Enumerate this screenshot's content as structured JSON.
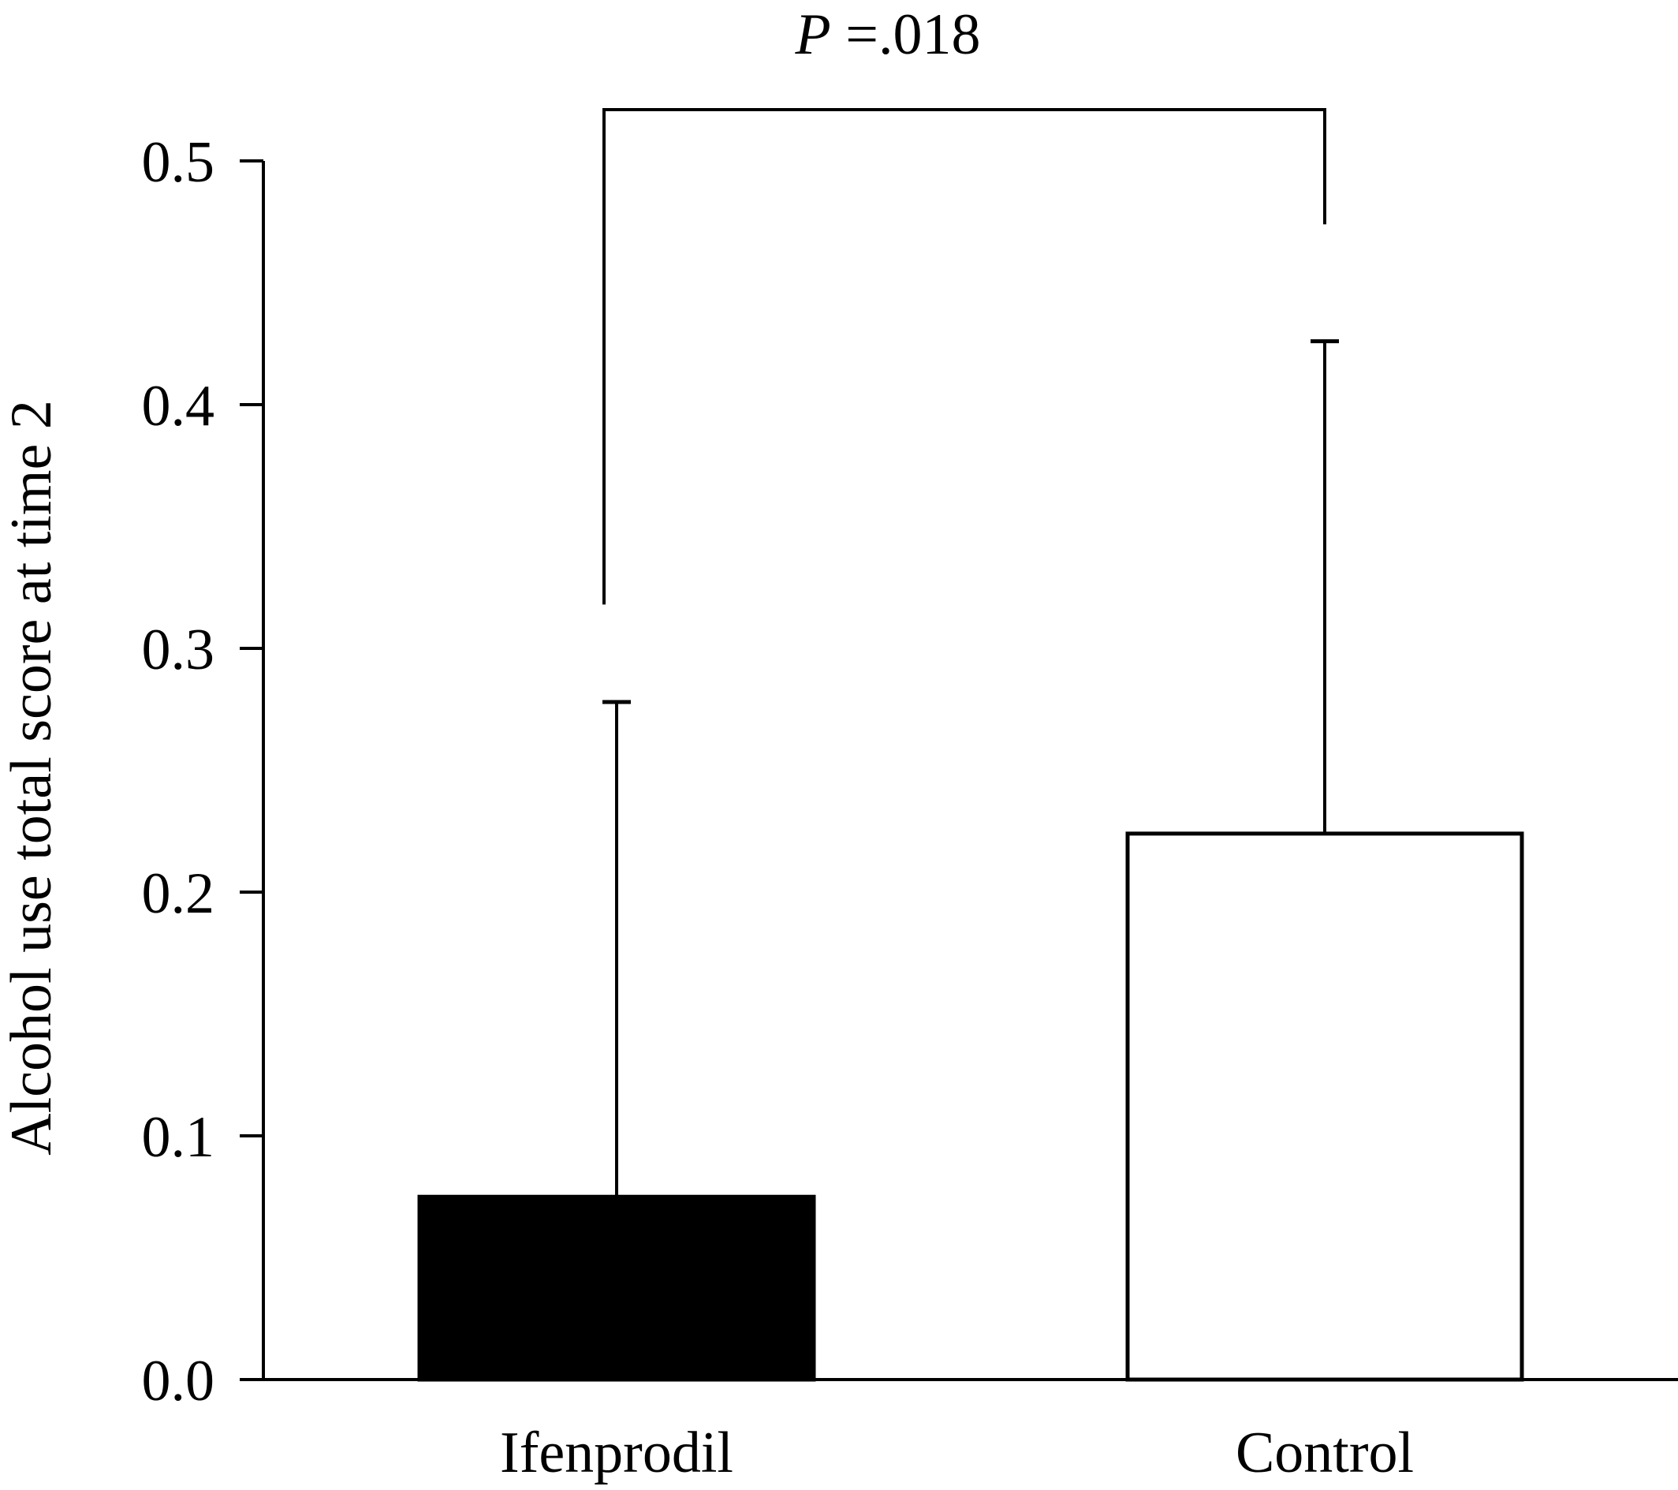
{
  "chart_data": {
    "type": "bar",
    "categories": [
      "Ifenprodil",
      "Control"
    ],
    "values": [
      0.075,
      0.224
    ],
    "error_upper": [
      0.278,
      0.426
    ],
    "ylabel": "Alcohol use total score at time 2",
    "xlabel": "",
    "ylim": [
      0,
      0.5
    ],
    "yticks": [
      "0.0",
      "0.1",
      "0.2",
      "0.3",
      "0.4",
      "0.5"
    ],
    "bar_fills": [
      "#000000",
      "#ffffff"
    ],
    "grid": false,
    "annotation": {
      "p_symbol": "P",
      "p_text": " =.018",
      "left_category": "Ifenprodil",
      "right_category": "Control"
    }
  }
}
